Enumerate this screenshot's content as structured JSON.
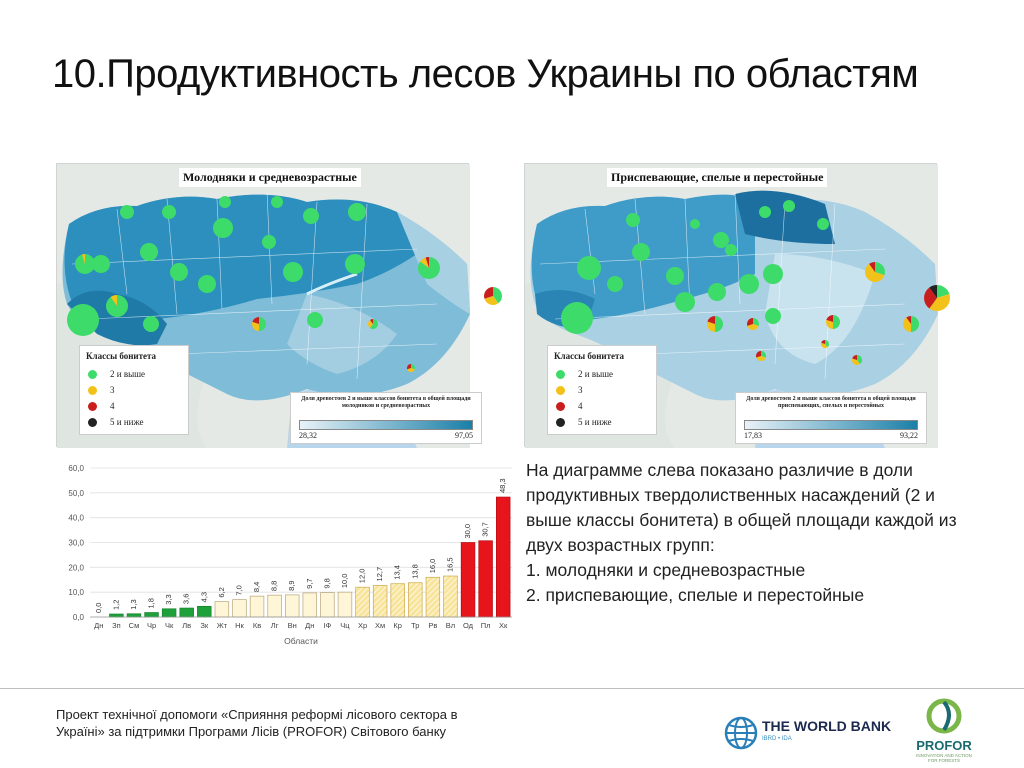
{
  "title": "10.Продуктивность лесов Украины по областям",
  "map_left": {
    "title": "Молодняки и средневозрастные",
    "legend_title": "Классы бонитета",
    "legend": [
      "2 и выше",
      "3",
      "4",
      "5 и ниже"
    ],
    "scale_title": "Доля древостоев 2 и выше классов бонитета в общей площади молодняков и средневозрастных",
    "scale_min": "28,32",
    "scale_max": "97,05"
  },
  "map_right": {
    "title": "Приспевающие, спелые и перестойные",
    "legend_title": "Классы бонитета",
    "legend": [
      "2 и выше",
      "3",
      "4",
      "5 и ниже"
    ],
    "scale_title": "Доля древостоев 2 и выше классов бонитета в общей площади приспевающих, спелых и перестойных",
    "scale_min": "17,83",
    "scale_max": "93,22"
  },
  "colors": {
    "legend": [
      "#3ddc6a",
      "#f3c21a",
      "#c81e1e",
      "#222222"
    ],
    "bar_green": "#1ea13a",
    "bar_cream": "#fff6d8",
    "bar_yellow": "#f8e49a",
    "bar_red": "#e8141c"
  },
  "chart_data": {
    "type": "bar",
    "xlabel": "Области",
    "ylabel": "",
    "ylim": [
      0,
      60
    ],
    "yticks": [
      "0,0",
      "10,0",
      "20,0",
      "30,0",
      "40,0",
      "50,0",
      "60,0"
    ],
    "categories": [
      "Дн",
      "Зп",
      "См",
      "Чр",
      "Чк",
      "Лв",
      "Зк",
      "Жт",
      "Нк",
      "Кв",
      "Лг",
      "Вн",
      "Дн",
      "ІФ",
      "Чц",
      "Хр",
      "Хм",
      "Кр",
      "Тр",
      "Рв",
      "Вл",
      "Од",
      "Пл",
      "Хк"
    ],
    "values": [
      0.0,
      1.2,
      1.3,
      1.8,
      3.3,
      3.6,
      4.3,
      6.2,
      7.0,
      8.4,
      8.8,
      8.9,
      9.7,
      9.8,
      10.0,
      12.0,
      12.7,
      13.4,
      13.8,
      16.0,
      16.5,
      30.0,
      30.7,
      48.3
    ],
    "labels": [
      "0,0",
      "1,2",
      "1,3",
      "1,8",
      "3,3",
      "3,6",
      "4,3",
      "6,2",
      "7,0",
      "8,4",
      "8,8",
      "8,9",
      "9,7",
      "9,8",
      "10,0",
      "12,0",
      "12,7",
      "13,4",
      "13,8",
      "16,0",
      "16,5",
      "30,0",
      "30,7",
      "48,3"
    ],
    "groups": [
      "green",
      "green",
      "green",
      "green",
      "green",
      "green",
      "green",
      "cream",
      "cream",
      "cream",
      "cream",
      "cream",
      "cream",
      "cream",
      "cream",
      "yellow",
      "yellow",
      "yellow",
      "yellow",
      "yellow",
      "yellow",
      "red",
      "red",
      "red"
    ]
  },
  "explanation": {
    "paragraph": "На диаграмме слева показано различие в доли продуктивных твердолиственных насаждений  (2 и выше классы бонитета) в общей площади  каждой из двух возрастных групп:",
    "items": [
      "1.  молодняки и средневозрастные",
      "2.  приспевающие, спелые и перестойные"
    ]
  },
  "footer": {
    "text": "Проект технічної допомоги «Сприяння реформі лісового сектора в Україні» за підтримки Програми Лісів (PROFOR) Світового банку",
    "wb_name": "THE WORLD BANK",
    "wb_sub": "IBRD • IDA",
    "profor_name": "PROFOR",
    "profor_sub": "INNOVATION AND ACTION FOR FORESTS"
  }
}
